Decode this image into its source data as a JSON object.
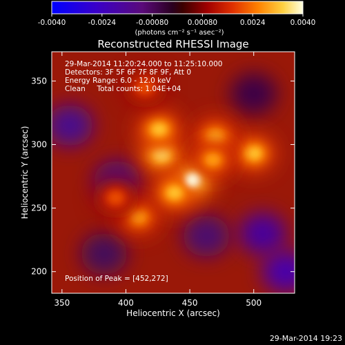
{
  "chart_data": {
    "type": "heatmap",
    "title": "Reconstructed RHESSI Image",
    "xlabel": "Heliocentric X (arcsec)",
    "ylabel": "Heliocentric Y (arcsec)",
    "xlim": [
      342,
      532
    ],
    "ylim": [
      183,
      373
    ],
    "x_ticks": [
      350,
      400,
      450,
      500
    ],
    "y_ticks": [
      200,
      250,
      300,
      350
    ],
    "colorbar": {
      "range": [
        -0.004,
        0.004
      ],
      "ticks": [
        "-0.0040",
        "-0.0024",
        "-0.00080",
        "0.00080",
        "0.0024",
        "0.0040"
      ],
      "label": "(photons cm⁻² s⁻¹ asec⁻²)"
    },
    "annotations": [
      "29-Mar-2014 11:20:24.000 to 11:25:10.000",
      "Detectors: 3F 5F 6F 7F 8F 9F, Att 0",
      "Energy Range: 6.0 - 12.0 keV",
      "Clean     Total counts: 1.04E+04"
    ],
    "peak_label": "Position of Peak = [452,272]",
    "peak": [
      452,
      272
    ],
    "bright_sources": [
      {
        "x": 452,
        "y": 272,
        "value": 0.004
      },
      {
        "x": 428,
        "y": 292,
        "value": 0.0034
      },
      {
        "x": 426,
        "y": 312,
        "value": 0.003
      },
      {
        "x": 500,
        "y": 293,
        "value": 0.003
      },
      {
        "x": 470,
        "y": 306,
        "value": 0.0028
      },
      {
        "x": 410,
        "y": 243,
        "value": 0.0026
      },
      {
        "x": 392,
        "y": 258,
        "value": 0.0018
      },
      {
        "x": 438,
        "y": 262,
        "value": 0.003
      },
      {
        "x": 468,
        "y": 288,
        "value": 0.0026
      },
      {
        "x": 415,
        "y": 345,
        "value": 0.0018
      }
    ],
    "negative_regions": [
      {
        "x": 356,
        "y": 315,
        "value": -0.0016
      },
      {
        "x": 393,
        "y": 271,
        "value": -0.0014
      },
      {
        "x": 507,
        "y": 230,
        "value": -0.0018
      },
      {
        "x": 463,
        "y": 228,
        "value": -0.0012
      },
      {
        "x": 383,
        "y": 214,
        "value": -0.001
      },
      {
        "x": 500,
        "y": 340,
        "value": -0.0008
      },
      {
        "x": 525,
        "y": 200,
        "value": -0.002
      }
    ],
    "grid": false
  },
  "footer": {
    "timestamp": "29-Mar-2014 19:23"
  }
}
